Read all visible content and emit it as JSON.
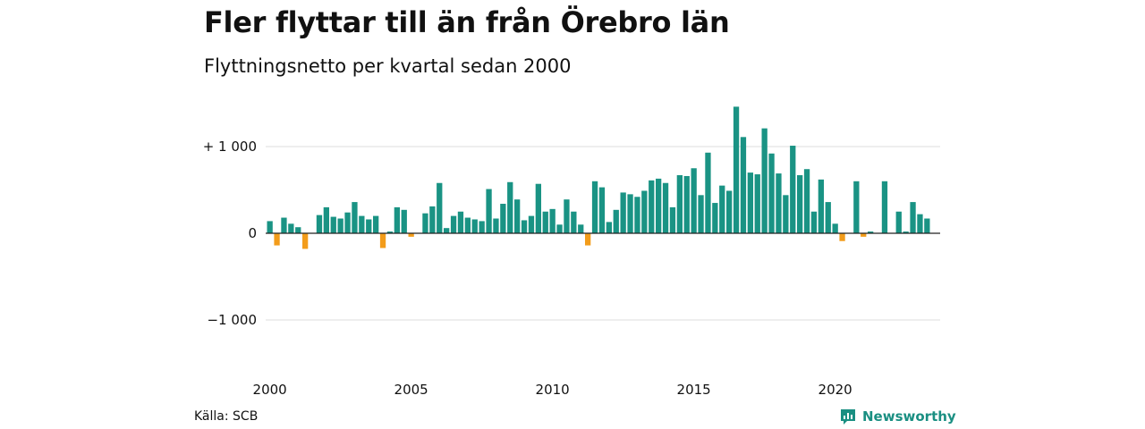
{
  "header": {
    "title": "Fler flyttar till än från Örebro län",
    "subtitle": "Flyttningsnetto per kvartal sedan 2000"
  },
  "footer": {
    "source": "Källa: SCB",
    "brand": "Newsworthy"
  },
  "colors": {
    "positive": "#1a9384",
    "negative": "#f39c1a",
    "grid": "#dddddd",
    "brand": "#1a8f82"
  },
  "chart_data": {
    "type": "bar",
    "title": "Fler flyttar till än från Örebro län",
    "subtitle": "Flyttningsnetto per kvartal sedan 2000",
    "start": "2000 Q1",
    "x_ticks": [
      "2000",
      "2005",
      "2010",
      "2015",
      "2020"
    ],
    "y_ticks": [
      {
        "value": 1000,
        "label": "+ 1 000"
      },
      {
        "value": 0,
        "label": "0"
      },
      {
        "value": -1000,
        "label": "−1 000"
      }
    ],
    "ylim": [
      -1500,
      1450
    ],
    "grid": true,
    "values": [
      140,
      -140,
      180,
      110,
      70,
      -180,
      0,
      210,
      300,
      190,
      170,
      240,
      360,
      200,
      160,
      200,
      -170,
      20,
      300,
      270,
      -40,
      0,
      230,
      310,
      580,
      60,
      200,
      250,
      180,
      160,
      140,
      510,
      170,
      340,
      590,
      390,
      150,
      200,
      570,
      250,
      280,
      100,
      390,
      250,
      100,
      -140,
      600,
      530,
      130,
      270,
      470,
      450,
      420,
      490,
      610,
      630,
      580,
      300,
      670,
      660,
      750,
      440,
      930,
      350,
      550,
      490,
      1460,
      1110,
      700,
      680,
      1210,
      920,
      690,
      440,
      1010,
      670,
      740,
      250,
      620,
      360,
      110,
      -90,
      0,
      600,
      -40,
      20,
      0,
      600,
      0,
      250,
      20,
      360,
      220,
      170
    ]
  }
}
